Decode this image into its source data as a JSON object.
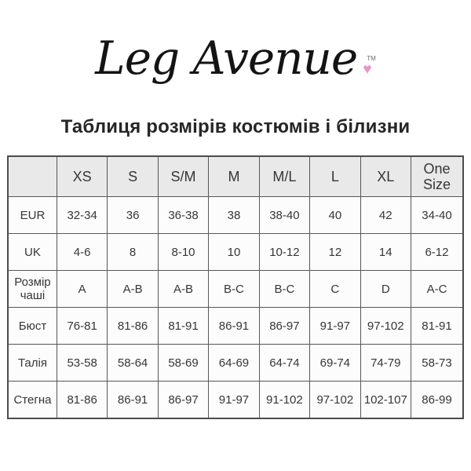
{
  "logo": {
    "text": "Leg Avenue",
    "tm": "TM",
    "heart": "♥"
  },
  "title": "Таблиця розмірів костюмів і білизни",
  "colors": {
    "background": "#ffffff",
    "header_bg": "#e9e9e9",
    "cell_bg": "#fcfcfc",
    "border": "#575757",
    "text": "#363636",
    "title_text": "#262626",
    "heart_pink": "#e895c6"
  },
  "chart_data": {
    "type": "table",
    "title": "Таблиця розмірів костюмів і білизни",
    "columns": [
      "",
      "XS",
      "S",
      "S/M",
      "M",
      "M/L",
      "L",
      "XL",
      "One Size"
    ],
    "rows": [
      {
        "label": "EUR",
        "values": [
          "32-34",
          "36",
          "36-38",
          "38",
          "38-40",
          "40",
          "42",
          "34-40"
        ]
      },
      {
        "label": "UK",
        "values": [
          "4-6",
          "8",
          "8-10",
          "10",
          "10-12",
          "12",
          "14",
          "6-12"
        ]
      },
      {
        "label": "Розмір чаші",
        "values": [
          "A",
          "A-B",
          "A-B",
          "B-C",
          "B-C",
          "C",
          "D",
          "A-C"
        ]
      },
      {
        "label": "Бюст",
        "values": [
          "76-81",
          "81-86",
          "81-91",
          "86-91",
          "86-97",
          "91-97",
          "97-102",
          "81-91"
        ]
      },
      {
        "label": "Талія",
        "values": [
          "53-58",
          "58-64",
          "58-69",
          "64-69",
          "64-74",
          "69-74",
          "74-79",
          "58-73"
        ]
      },
      {
        "label": "Стегна",
        "values": [
          "81-86",
          "86-91",
          "86-97",
          "91-97",
          "91-102",
          "97-102",
          "102-107",
          "86-99"
        ]
      }
    ]
  }
}
